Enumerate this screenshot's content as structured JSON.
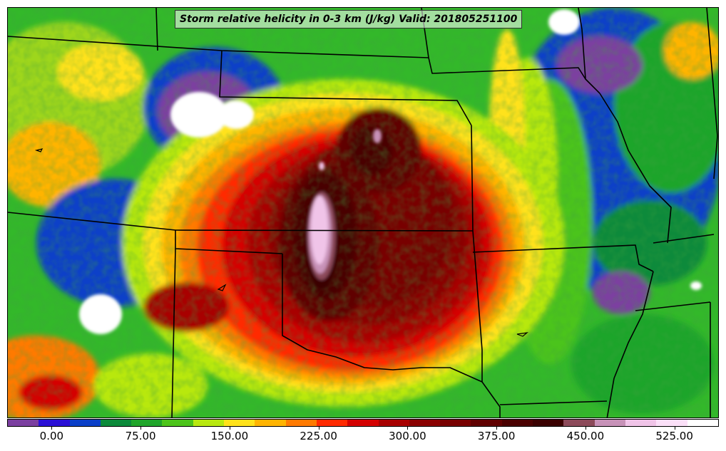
{
  "title": "Storm relative helicity in 0-3 km (J/kg) Valid: 201805251100",
  "colorbar": {
    "colors": [
      "#7b3fa0",
      "#2a10d6",
      "#0a3fc8",
      "#0b8a3a",
      "#1fa52a",
      "#4cc41a",
      "#b8e80f",
      "#ffe21a",
      "#ffb400",
      "#ff7a00",
      "#ff2a00",
      "#d40000",
      "#a80000",
      "#8a0000",
      "#780000",
      "#600000",
      "#4a0000",
      "#3a0000",
      "#8c4a5a",
      "#c792b8",
      "#f0c4e8",
      "#fbe0f8",
      "#ffffff"
    ],
    "min": -37.5,
    "max": 562.5,
    "ticks": [
      0.0,
      75.0,
      150.0,
      225.0,
      300.0,
      375.0,
      450.0,
      525.0
    ],
    "tick_labels": [
      "0.00",
      "75.00",
      "150.00",
      "225.00",
      "300.00",
      "375.00",
      "450.00",
      "525.00"
    ]
  }
}
